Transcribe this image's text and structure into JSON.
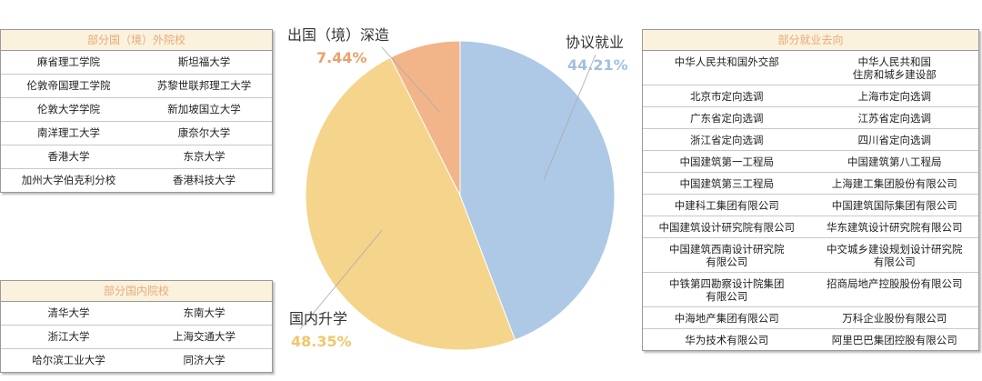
{
  "chart_data": {
    "type": "pie",
    "categories": [
      "协议就业",
      "国内升学",
      "出国（境）深造"
    ],
    "values": [
      44.21,
      48.35,
      7.44
    ],
    "value_labels": [
      "44.21%",
      "48.35%",
      "7.44%"
    ],
    "colors": [
      "#aec9e5",
      "#f5d48b",
      "#f2b58a"
    ],
    "label_colors": [
      "#a3bfdd",
      "#f0c66a",
      "#ee9f6a"
    ]
  },
  "tables": [
    {
      "title": "部分国（境）外院校",
      "rows": [
        [
          "麻省理工学院",
          "斯坦福大学"
        ],
        [
          "伦敦帝国理工学院",
          "苏黎世联邦理工大学"
        ],
        [
          "伦敦大学学院",
          "新加坡国立大学"
        ],
        [
          "南洋理工大学",
          "康奈尔大学"
        ],
        [
          "香港大学",
          "东京大学"
        ],
        [
          "加州大学伯克利分校",
          "香港科技大学"
        ]
      ]
    },
    {
      "title": "部分国内院校",
      "rows": [
        [
          "清华大学",
          "东南大学"
        ],
        [
          "浙江大学",
          "上海交通大学"
        ],
        [
          "哈尔滨工业大学",
          "同济大学"
        ]
      ]
    },
    {
      "title": "部分就业去向",
      "rows": [
        [
          "中华人民共和国外交部",
          "中华人民共和国\n住房和城乡建设部"
        ],
        [
          "北京市定向选调",
          "上海市定向选调"
        ],
        [
          "广东省定向选调",
          "江苏省定向选调"
        ],
        [
          "浙江省定向选调",
          "四川省定向选调"
        ],
        [
          "中国建筑第一工程局",
          "中国建筑第八工程局"
        ],
        [
          "中国建筑第三工程局",
          "上海建工集团股份有限公司"
        ],
        [
          "中建科工集团有限公司",
          "中国建筑国际集团有限公司"
        ],
        [
          "中国建筑设计研究院有限公司",
          "华东建筑设计研究院有限公司"
        ],
        [
          "中国建筑西南设计研究院\n有限公司",
          "中交城乡建设规划设计研究院\n有限公司"
        ],
        [
          "中铁第四勘察设计院集团\n有限公司",
          "招商局地产控股股份有限公司"
        ],
        [
          "中海地产集团有限公司",
          "万科企业股份有限公司"
        ],
        [
          "华为技术有限公司",
          "阿里巴巴集团控股有限公司"
        ]
      ]
    }
  ]
}
